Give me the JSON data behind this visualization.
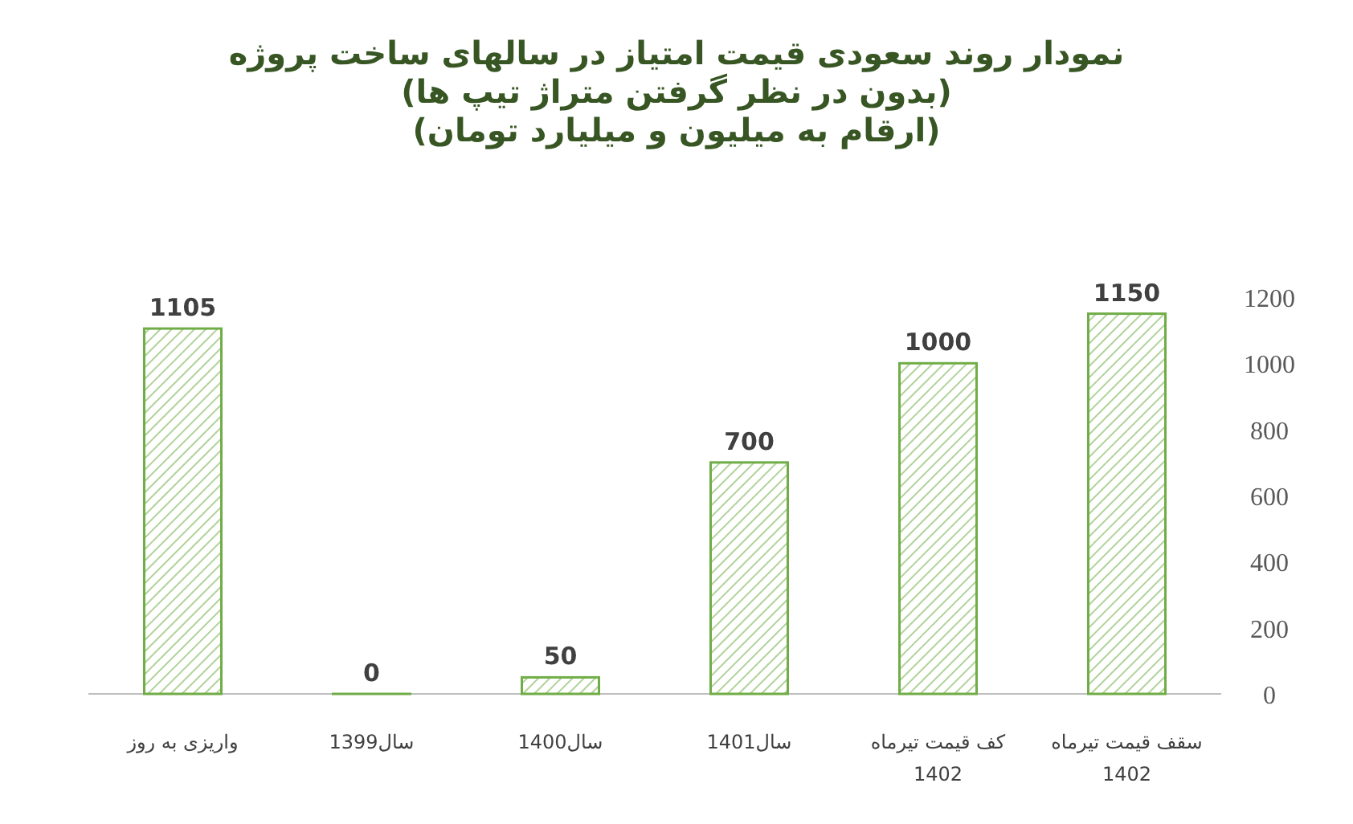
{
  "chart_data": {
    "type": "bar",
    "title": "نمودار روند سعودی قیمت امتیاز در سالهای ساخت پروژه",
    "subtitle": "(بدون در نظر گرفتن متراژ تیپ ها)",
    "annotations": [
      "(ارقام به میلیون و میلیارد تومان)"
    ],
    "categories": [
      "واریزی به روز",
      "سال1399",
      "سال1400",
      "سال1401",
      "کف قیمت تیرماه 1402",
      "سقف قیمت تیرماه 1402"
    ],
    "values": [
      1105,
      0,
      50,
      700,
      1000,
      1150
    ],
    "color": "#70ad47",
    "ylim": [
      0,
      1200
    ],
    "yticks": [
      0,
      200,
      400,
      600,
      800,
      1000,
      1200
    ],
    "data_labels": true,
    "grid": false
  }
}
